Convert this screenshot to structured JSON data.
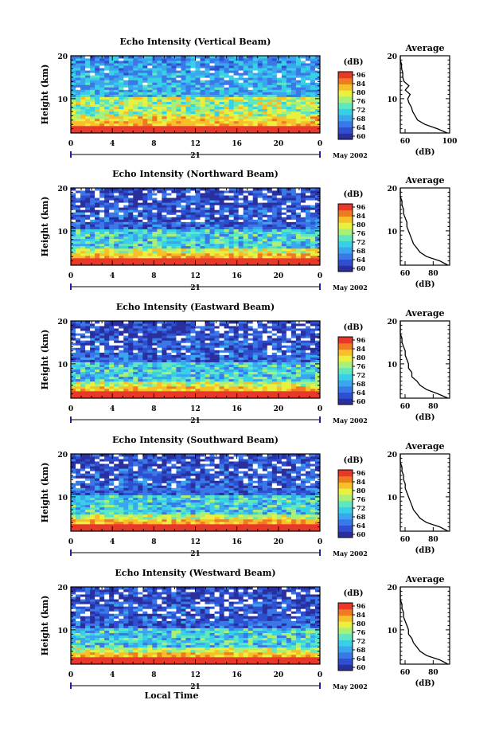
{
  "chart_data": [
    {
      "type": "heatmap",
      "title": "Echo Intensity (Vertical Beam)",
      "ylabel": "Height (km)",
      "yticks": [
        "20",
        "10"
      ],
      "ylim": [
        2,
        20
      ],
      "xticks": [
        "0",
        "4",
        "8",
        "12",
        "16",
        "20",
        "0"
      ],
      "xlim": [
        0,
        24
      ],
      "date_label": "21",
      "month_label": "May 2002",
      "cbar_title": "(dB)",
      "cbar_ticks": [
        "96",
        "84",
        "80",
        "76",
        "72",
        "68",
        "64",
        "60"
      ],
      "avg_title": "Average",
      "avg_yticks": [
        "20",
        "10"
      ],
      "avg_xticks": [
        "60",
        "100"
      ],
      "avg_xlabel": "(dB)",
      "avg_xlim": [
        60,
        100
      ],
      "avg_profile": [
        [
          2,
          98
        ],
        [
          3,
          90
        ],
        [
          4,
          80
        ],
        [
          5,
          74
        ],
        [
          6,
          72
        ],
        [
          7,
          70
        ],
        [
          8,
          69
        ],
        [
          9,
          67
        ],
        [
          10,
          66
        ],
        [
          11,
          68
        ],
        [
          12,
          64
        ],
        [
          13,
          67
        ],
        [
          14,
          63
        ],
        [
          15,
          62
        ],
        [
          16,
          62
        ],
        [
          17,
          61
        ],
        [
          18,
          61
        ],
        [
          19,
          60
        ],
        [
          20,
          60
        ]
      ]
    },
    {
      "type": "heatmap",
      "title": "Echo Intensity (Northward Beam)",
      "ylabel": "Height (km)",
      "yticks": [
        "20",
        "10"
      ],
      "ylim": [
        2,
        20
      ],
      "xticks": [
        "0",
        "4",
        "8",
        "12",
        "16",
        "20",
        "0"
      ],
      "xlim": [
        0,
        24
      ],
      "date_label": "21",
      "month_label": "May 2002",
      "cbar_title": "(dB)",
      "cbar_ticks": [
        "96",
        "84",
        "80",
        "76",
        "72",
        "68",
        "64",
        "60"
      ],
      "avg_title": "Average",
      "avg_yticks": [
        "20",
        "10"
      ],
      "avg_xticks": [
        "60",
        "80"
      ],
      "avg_xlabel": "(dB)",
      "avg_xlim": [
        60,
        90
      ],
      "avg_profile": [
        [
          2,
          89
        ],
        [
          3,
          84
        ],
        [
          4,
          76
        ],
        [
          5,
          72
        ],
        [
          6,
          70
        ],
        [
          7,
          68
        ],
        [
          8,
          67
        ],
        [
          9,
          66
        ],
        [
          10,
          65
        ],
        [
          11,
          64
        ],
        [
          12,
          64
        ],
        [
          13,
          63
        ],
        [
          14,
          62
        ],
        [
          15,
          62
        ],
        [
          16,
          61
        ],
        [
          17,
          61
        ],
        [
          18,
          60
        ],
        [
          19,
          60
        ],
        [
          20,
          60
        ]
      ]
    },
    {
      "type": "heatmap",
      "title": "Echo Intensity (Eastward Beam)",
      "ylabel": "Height (km)",
      "yticks": [
        "20",
        "10"
      ],
      "ylim": [
        2,
        20
      ],
      "xticks": [
        "0",
        "4",
        "8",
        "12",
        "16",
        "20",
        "0"
      ],
      "xlim": [
        0,
        24
      ],
      "date_label": "21",
      "month_label": "May 2002",
      "cbar_title": "(dB)",
      "cbar_ticks": [
        "96",
        "84",
        "80",
        "76",
        "72",
        "68",
        "64",
        "60"
      ],
      "avg_title": "Average",
      "avg_yticks": [
        "20",
        "10"
      ],
      "avg_xticks": [
        "60",
        "80"
      ],
      "avg_xlabel": "(dB)",
      "avg_xlim": [
        60,
        90
      ],
      "avg_profile": [
        [
          2,
          89
        ],
        [
          3,
          83
        ],
        [
          4,
          76
        ],
        [
          5,
          72
        ],
        [
          6,
          70
        ],
        [
          7,
          67
        ],
        [
          8,
          67
        ],
        [
          9,
          65
        ],
        [
          10,
          65
        ],
        [
          11,
          64
        ],
        [
          12,
          63
        ],
        [
          13,
          63
        ],
        [
          14,
          62
        ],
        [
          15,
          61
        ],
        [
          16,
          61
        ],
        [
          17,
          60
        ],
        [
          18,
          60
        ],
        [
          19,
          60
        ],
        [
          20,
          60
        ]
      ]
    },
    {
      "type": "heatmap",
      "title": "Echo Intensity (Southward Beam)",
      "ylabel": "Height (km)",
      "yticks": [
        "20",
        "10"
      ],
      "ylim": [
        2,
        20
      ],
      "xticks": [
        "0",
        "4",
        "8",
        "12",
        "16",
        "20",
        "0"
      ],
      "xlim": [
        0,
        24
      ],
      "date_label": "21",
      "month_label": "May 2002",
      "cbar_title": "(dB)",
      "cbar_ticks": [
        "96",
        "84",
        "80",
        "76",
        "72",
        "68",
        "64",
        "60"
      ],
      "avg_title": "Average",
      "avg_yticks": [
        "20",
        "10"
      ],
      "avg_xticks": [
        "60",
        "80"
      ],
      "avg_xlabel": "(dB)",
      "avg_xlim": [
        60,
        90
      ],
      "avg_profile": [
        [
          2,
          89
        ],
        [
          3,
          84
        ],
        [
          4,
          76
        ],
        [
          5,
          72
        ],
        [
          6,
          70
        ],
        [
          7,
          68
        ],
        [
          8,
          67
        ],
        [
          9,
          66
        ],
        [
          10,
          65
        ],
        [
          11,
          64
        ],
        [
          12,
          63
        ],
        [
          13,
          63
        ],
        [
          14,
          62
        ],
        [
          15,
          62
        ],
        [
          16,
          61
        ],
        [
          17,
          61
        ],
        [
          18,
          60
        ],
        [
          19,
          60
        ],
        [
          20,
          60
        ]
      ]
    },
    {
      "type": "heatmap",
      "title": "Echo Intensity (Westward Beam)",
      "ylabel": "Height (km)",
      "yticks": [
        "20",
        "10"
      ],
      "ylim": [
        2,
        20
      ],
      "xticks": [
        "0",
        "4",
        "8",
        "12",
        "16",
        "20",
        "0"
      ],
      "xlim": [
        0,
        24
      ],
      "date_label": "21",
      "month_label": "May 2002",
      "cbar_title": "(dB)",
      "cbar_ticks": [
        "96",
        "84",
        "80",
        "76",
        "72",
        "68",
        "64",
        "60"
      ],
      "avg_title": "Average",
      "avg_yticks": [
        "20",
        "10"
      ],
      "avg_xticks": [
        "60",
        "80"
      ],
      "avg_xlabel": "(dB)",
      "avg_xlim": [
        60,
        90
      ],
      "avg_profile": [
        [
          2,
          89
        ],
        [
          3,
          84
        ],
        [
          4,
          76
        ],
        [
          5,
          72
        ],
        [
          6,
          70
        ],
        [
          7,
          68
        ],
        [
          8,
          67
        ],
        [
          9,
          65
        ],
        [
          10,
          65
        ],
        [
          11,
          64
        ],
        [
          12,
          63
        ],
        [
          13,
          62
        ],
        [
          14,
          62
        ],
        [
          15,
          61
        ],
        [
          16,
          61
        ],
        [
          17,
          60
        ],
        [
          18,
          60
        ],
        [
          19,
          60
        ],
        [
          20,
          60
        ]
      ],
      "xlabel": "Local Time"
    }
  ],
  "colormap": [
    "#2a2fa0",
    "#2d4fd0",
    "#3a78e8",
    "#3aa6ee",
    "#38d0e6",
    "#5fe7c0",
    "#a9f07a",
    "#e8f040",
    "#f7c02a",
    "#f07a22",
    "#e8382a"
  ]
}
